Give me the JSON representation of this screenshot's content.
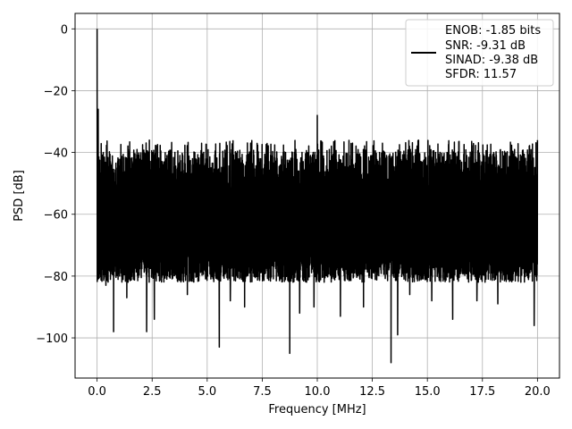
{
  "chart_data": {
    "type": "line",
    "title": "",
    "xlabel": "Frequency [MHz]",
    "ylabel": "PSD [dB]",
    "xlim": [
      -1.0,
      21.0
    ],
    "ylim": [
      -113,
      5
    ],
    "grid": true,
    "legend_position": "top-right",
    "x_ticks": [
      0.0,
      2.5,
      5.0,
      7.5,
      10.0,
      12.5,
      15.0,
      17.5,
      20.0
    ],
    "x_tick_labels": [
      "0.0",
      "2.5",
      "5.0",
      "7.5",
      "10.0",
      "12.5",
      "15.0",
      "17.5",
      "20.0"
    ],
    "y_ticks": [
      0,
      -20,
      -40,
      -60,
      -80,
      -100
    ],
    "y_tick_labels": [
      "0",
      "−20",
      "−40",
      "−60",
      "−80",
      "−100"
    ],
    "legend": {
      "color": "#000000",
      "lines": [
        "ENOB: -1.85 bits",
        "SNR: -9.31 dB",
        "SINAD: -9.38 dB",
        "SFDR: 11.57"
      ]
    },
    "series": [
      {
        "color": "#000000",
        "noise_floor": {
          "x_range": [
            0.0,
            20.0
          ],
          "upper_envelope": -36,
          "lower_typical": -78
        },
        "peaks": [
          {
            "x": 0.0,
            "y": 0
          },
          {
            "x": 0.05,
            "y": -26
          },
          {
            "x": 10.0,
            "y": -28
          },
          {
            "x": 20.0,
            "y": -36
          }
        ],
        "deep_dips": [
          {
            "x": 0.4,
            "y": -83
          },
          {
            "x": 0.75,
            "y": -98
          },
          {
            "x": 1.35,
            "y": -87
          },
          {
            "x": 2.25,
            "y": -98
          },
          {
            "x": 2.6,
            "y": -94
          },
          {
            "x": 4.1,
            "y": -86
          },
          {
            "x": 5.55,
            "y": -103
          },
          {
            "x": 6.05,
            "y": -88
          },
          {
            "x": 6.7,
            "y": -90
          },
          {
            "x": 8.75,
            "y": -105
          },
          {
            "x": 9.2,
            "y": -92
          },
          {
            "x": 9.85,
            "y": -90
          },
          {
            "x": 11.05,
            "y": -93
          },
          {
            "x": 12.1,
            "y": -90
          },
          {
            "x": 13.35,
            "y": -108
          },
          {
            "x": 13.65,
            "y": -99
          },
          {
            "x": 14.2,
            "y": -86
          },
          {
            "x": 15.2,
            "y": -88
          },
          {
            "x": 16.15,
            "y": -94
          },
          {
            "x": 17.25,
            "y": -88
          },
          {
            "x": 18.2,
            "y": -89
          },
          {
            "x": 19.85,
            "y": -96
          }
        ]
      }
    ]
  }
}
